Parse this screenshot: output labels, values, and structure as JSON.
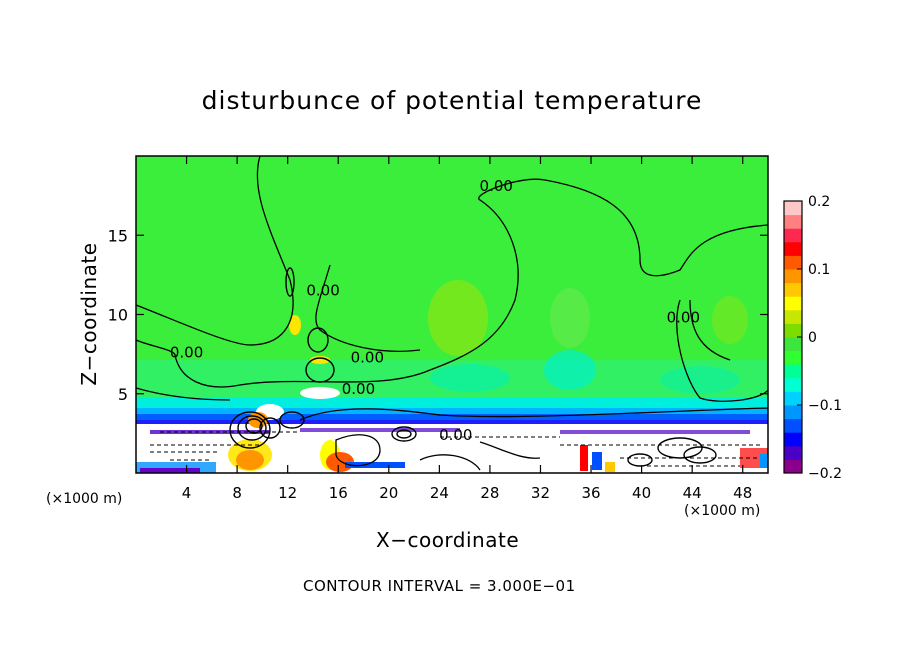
{
  "chart_data": {
    "type": "heatmap",
    "title": "disturbunce of potential temperature",
    "xlabel": "X−coordinate",
    "ylabel": "Z−coordinate",
    "x_unit_left": "(×1000 m)",
    "x_unit_right": "(×1000 m)",
    "xlim": [
      0,
      50
    ],
    "ylim": [
      0,
      20
    ],
    "x_ticks": [
      4,
      8,
      12,
      16,
      20,
      24,
      28,
      32,
      36,
      40,
      44,
      48
    ],
    "y_ticks": [
      5,
      10,
      15
    ],
    "colorbar": {
      "min": -0.2,
      "max": 0.2,
      "tick_labels": [
        "0.2",
        "0.1",
        "0",
        "−0.1",
        "−0.2"
      ],
      "tick_values": [
        0.2,
        0.1,
        0,
        -0.1,
        -0.2
      ],
      "colors": [
        "#8b008b",
        "#4b00c8",
        "#0000ff",
        "#0050ff",
        "#0096ff",
        "#00d2ff",
        "#00ffd2",
        "#00ff96",
        "#32ff32",
        "#3ce63c",
        "#7ddc00",
        "#c8e600",
        "#ffff00",
        "#ffc800",
        "#ff9600",
        "#ff5a00",
        "#ff0000",
        "#ff2850",
        "#ff8080",
        "#ffc8c8"
      ]
    },
    "contour_labels": [
      {
        "text": "0.00",
        "x": 28.5,
        "z": 18.1
      },
      {
        "text": "0.00",
        "x": 4.0,
        "z": 7.6
      },
      {
        "text": "0.00",
        "x": 14.8,
        "z": 11.5
      },
      {
        "text": "0.00",
        "x": 18.3,
        "z": 7.3
      },
      {
        "text": "0.00",
        "x": 17.6,
        "z": 5.3
      },
      {
        "text": "0.00",
        "x": 43.3,
        "z": 9.8
      },
      {
        "text": "0.00",
        "x": 25.3,
        "z": 2.4
      }
    ],
    "contour_interval": "CONTOUR INTERVAL = 3.000E−01"
  }
}
